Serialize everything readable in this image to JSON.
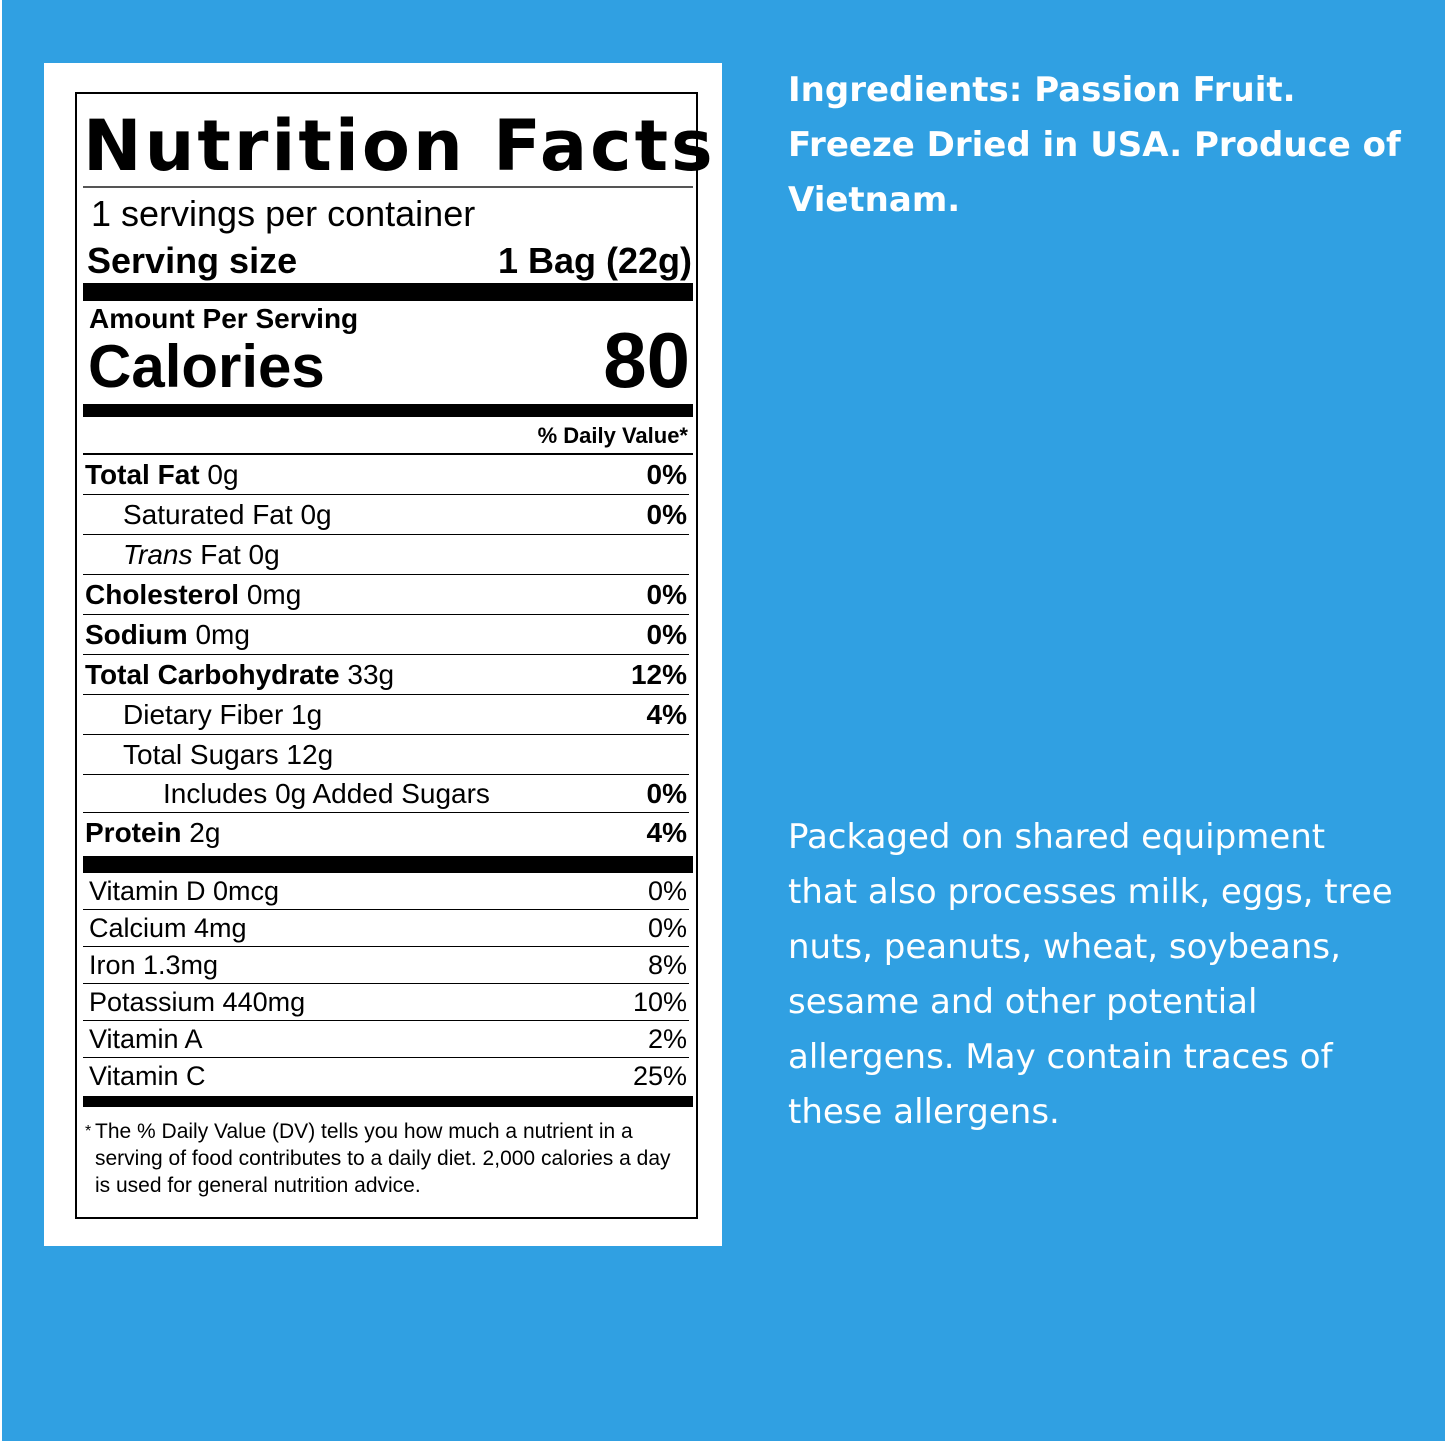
{
  "colors": {
    "background": "#30a0e2",
    "panel": "#ffffff",
    "text": "#000000",
    "side_text": "#ffffff"
  },
  "label": {
    "title": "Nutrition Facts",
    "servings": "1 servings per container",
    "serving_size_label": "Serving size",
    "serving_size_value": "1 Bag (22g)",
    "amount_per_serving": "Amount Per Serving",
    "calories_label": "Calories",
    "calories_value": "80",
    "dv_header": "% Daily Value*",
    "nutrients": [
      {
        "name": "Total Fat",
        "amount": "0g",
        "dv": "0%"
      },
      {
        "name": "Saturated Fat",
        "amount": "0g",
        "dv": "0%"
      },
      {
        "name": "Trans",
        "amount": "Fat 0g",
        "dv": ""
      },
      {
        "name": "Cholesterol",
        "amount": "0mg",
        "dv": "0%"
      },
      {
        "name": "Sodium",
        "amount": "0mg",
        "dv": "0%"
      },
      {
        "name": "Total Carbohydrate",
        "amount": "33g",
        "dv": "12%"
      },
      {
        "name": "Dietary Fiber",
        "amount": "1g",
        "dv": "4%"
      },
      {
        "name": "Total Sugars",
        "amount": "12g",
        "dv": ""
      },
      {
        "name": "Includes 0g Added Sugars",
        "amount": "",
        "dv": "0%"
      },
      {
        "name": "Protein",
        "amount": "2g",
        "dv": "4%"
      }
    ],
    "vitamins": [
      {
        "name": "Vitamin D 0mcg",
        "dv": "0%"
      },
      {
        "name": "Calcium 4mg",
        "dv": "0%"
      },
      {
        "name": "Iron 1.3mg",
        "dv": "8%"
      },
      {
        "name": "Potassium 440mg",
        "dv": "10%"
      },
      {
        "name": "Vitamin A",
        "dv": "2%"
      },
      {
        "name": "Vitamin C",
        "dv": "25%"
      }
    ],
    "footnote_star": "*",
    "footnote": "The % Daily Value (DV) tells you how much a nutrient in a serving of food contributes to a daily diet. 2,000 calories a day is used for general nutrition advice."
  },
  "side": {
    "ingredients": "Ingredients: Passion Fruit. Freeze Dried in USA. Produce of Vietnam.",
    "allergen": "Packaged on shared equipment that also processes milk, eggs, tree nuts, peanuts, wheat, soybeans, sesame and other potential allergens. May contain traces of these allergens."
  }
}
